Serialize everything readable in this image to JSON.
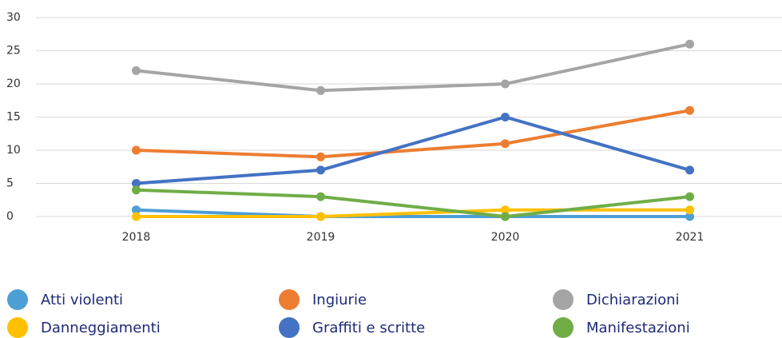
{
  "chart_data": {
    "type": "line",
    "categories": [
      "2018",
      "2019",
      "2020",
      "2021"
    ],
    "series": [
      {
        "name": "Atti violenti",
        "color": "#4e9fd6",
        "values": [
          1,
          0,
          0,
          0
        ]
      },
      {
        "name": "Ingiurie",
        "color": "#ed7d31",
        "values": [
          10,
          9,
          11,
          16
        ]
      },
      {
        "name": "Dichiarazioni",
        "color": "#a5a5a5",
        "values": [
          22,
          19,
          20,
          26
        ]
      },
      {
        "name": "Danneggiamenti",
        "color": "#ffc000",
        "values": [
          0,
          0,
          1,
          1
        ]
      },
      {
        "name": "Graffiti e scritte",
        "color": "#4472c4",
        "values": [
          5,
          7,
          15,
          7
        ]
      },
      {
        "name": "Manifestazioni",
        "color": "#70ad47",
        "values": [
          4,
          3,
          0,
          3
        ]
      }
    ],
    "ylim": [
      0,
      30
    ],
    "yticks": [
      0,
      5,
      10,
      15,
      20,
      25,
      30
    ],
    "grid": true,
    "legend": "bottom"
  }
}
